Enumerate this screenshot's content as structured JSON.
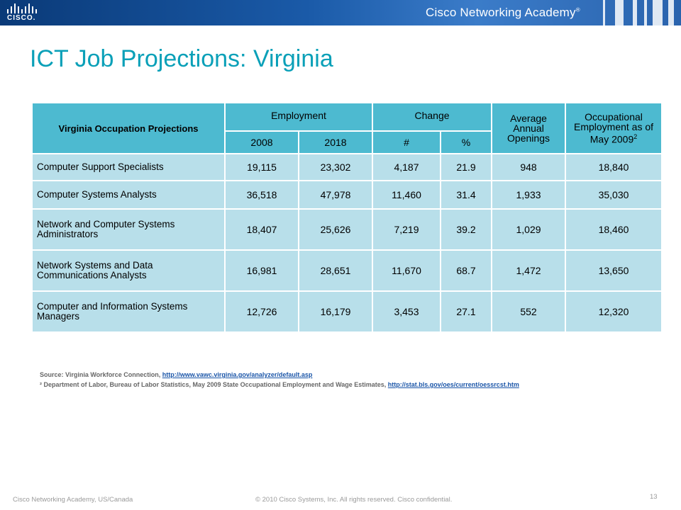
{
  "header": {
    "brand": "CISCO.",
    "academy": "Cisco Networking Academy",
    "trademark": "®"
  },
  "title": "ICT Job Projections: Virginia",
  "table": {
    "occupation_header": "Virginia Occupation Projections",
    "employment_header": "Employment",
    "change_header": "Change",
    "openings_header": "Average Annual Openings",
    "occ_emp_header": "Occupational Employment as of May 2009",
    "occ_emp_sup": "2",
    "sub_headers": [
      "2008",
      "2018",
      "#",
      "%"
    ],
    "rows": [
      {
        "name": "Computer Support Specialists",
        "y2008": "19,115",
        "y2018": "23,302",
        "chg_num": "4,187",
        "chg_pct": "21.9",
        "openings": "948",
        "occ_emp": "18,840"
      },
      {
        "name": "Computer Systems Analysts",
        "y2008": "36,518",
        "y2018": "47,978",
        "chg_num": "11,460",
        "chg_pct": "31.4",
        "openings": "1,933",
        "occ_emp": "35,030"
      },
      {
        "name": "Network and Computer Systems Administrators",
        "y2008": "18,407",
        "y2018": "25,626",
        "chg_num": "7,219",
        "chg_pct": "39.2",
        "openings": "1,029",
        "occ_emp": "18,460"
      },
      {
        "name": "Network Systems and Data Communications Analysts",
        "y2008": "16,981",
        "y2018": "28,651",
        "chg_num": "11,670",
        "chg_pct": "68.7",
        "openings": "1,472",
        "occ_emp": "13,650"
      },
      {
        "name": "Computer and Information Systems Managers",
        "y2008": "12,726",
        "y2018": "16,179",
        "chg_num": "3,453",
        "chg_pct": "27.1",
        "openings": "552",
        "occ_emp": "12,320"
      }
    ]
  },
  "footnotes": {
    "source_label": "Source: Virginia Workforce Connection, ",
    "source_link": "http://www.vawc.virginia.gov/analyzer/default.asp",
    "note2_label": "² Department of Labor, Bureau of Labor Statistics, May 2009 State Occupational Employment and Wage Estimates, ",
    "note2_link": "http://stat.bls.gov/oes/current/oessrcst.htm"
  },
  "footer": {
    "left": "Cisco Networking Academy, US/Canada",
    "center": "© 2010 Cisco Systems, Inc. All rights reserved. Cisco confidential.",
    "page": "13"
  }
}
